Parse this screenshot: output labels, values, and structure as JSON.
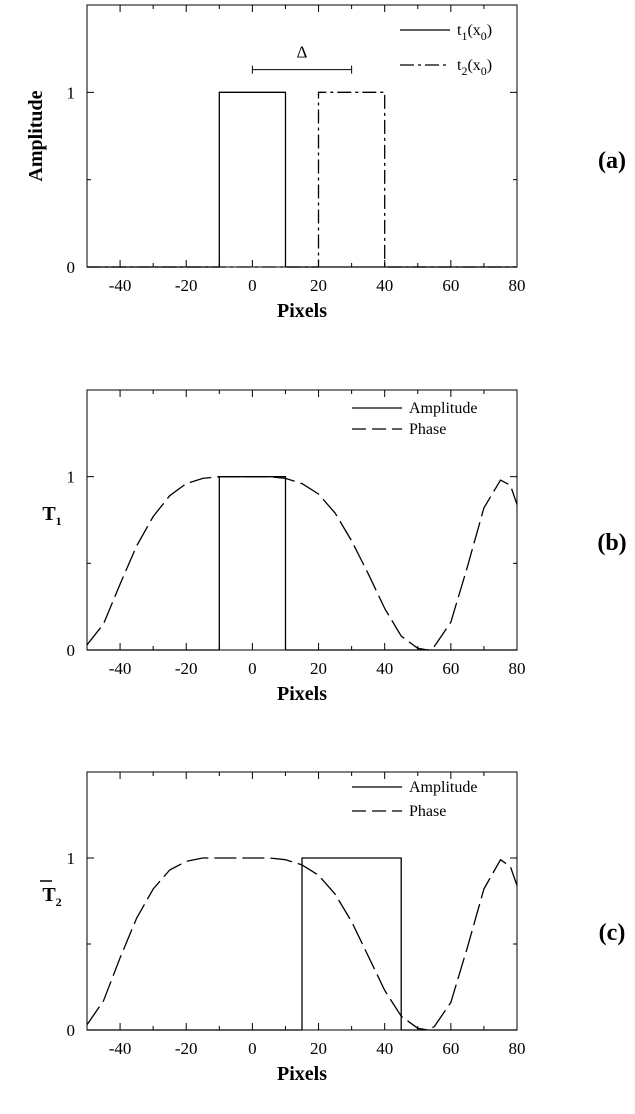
{
  "figure": {
    "background": "#ffffff",
    "ink": "#000000"
  },
  "chart_data": [
    {
      "type": "line",
      "panel_label": "(a)",
      "xlabel": "Pixels",
      "ylabel": "Amplitude",
      "xlim": [
        -50,
        80
      ],
      "ylim": [
        0,
        1.5
      ],
      "xticks": [
        -40,
        -20,
        0,
        20,
        40,
        60,
        80
      ],
      "yticks": [
        0,
        1
      ],
      "annotation": {
        "text": "Δ",
        "from": 0,
        "to": 30,
        "y": 1.13
      },
      "series": [
        {
          "name": "t1(x0)",
          "legend_main": "t",
          "legend_sub": "1",
          "legend_tail": "(x",
          "legend_sub2": "0",
          "legend_end": ")",
          "style": "solid",
          "x": [
            -50,
            -10,
            -10,
            10,
            10,
            80
          ],
          "y": [
            0,
            0,
            1,
            1,
            0,
            0
          ]
        },
        {
          "name": "t2(x0)",
          "legend_main": "t",
          "legend_sub": "2",
          "legend_tail": "(x",
          "legend_sub2": "0",
          "legend_end": ")",
          "style": "dashdot",
          "x": [
            -50,
            20,
            20,
            40,
            40,
            80
          ],
          "y": [
            0,
            0,
            1,
            1,
            0,
            0
          ]
        }
      ]
    },
    {
      "type": "line",
      "panel_label": "(b)",
      "xlabel": "Pixels",
      "ylabel": "T",
      "ylabel_sub": "1",
      "ylabel_bar": false,
      "xlim": [
        -50,
        80
      ],
      "ylim": [
        0,
        1.5
      ],
      "xticks": [
        -40,
        -20,
        0,
        20,
        40,
        60,
        80
      ],
      "yticks": [
        0,
        1
      ],
      "series": [
        {
          "name": "Amplitude",
          "style": "solid",
          "x": [
            -50,
            -10,
            -10,
            10,
            10,
            80
          ],
          "y": [
            0,
            0,
            1,
            1,
            0,
            0
          ]
        },
        {
          "name": "Phase",
          "style": "dashed",
          "x": [
            -50,
            -45,
            -40,
            -35,
            -30,
            -25,
            -20,
            -15,
            -10,
            -5,
            0,
            5,
            10,
            15,
            20,
            25,
            30,
            35,
            40,
            45,
            50,
            53,
            55,
            60,
            65,
            70,
            75,
            78,
            80
          ],
          "y": [
            0.03,
            0.15,
            0.38,
            0.6,
            0.77,
            0.89,
            0.96,
            0.99,
            1.0,
            1.0,
            1.0,
            1.0,
            0.99,
            0.96,
            0.9,
            0.79,
            0.63,
            0.44,
            0.24,
            0.08,
            0.01,
            0.0,
            0.02,
            0.16,
            0.48,
            0.82,
            0.98,
            0.95,
            0.84
          ]
        }
      ]
    },
    {
      "type": "line",
      "panel_label": "(c)",
      "xlabel": "Pixels",
      "ylabel": "T",
      "ylabel_sub": "2",
      "ylabel_bar": true,
      "xlim": [
        -50,
        80
      ],
      "ylim": [
        0,
        1.5
      ],
      "xticks": [
        -40,
        -20,
        0,
        20,
        40,
        60,
        80
      ],
      "yticks": [
        0,
        1
      ],
      "series": [
        {
          "name": "Amplitude",
          "style": "solid",
          "x": [
            -50,
            15,
            15,
            45,
            45,
            80
          ],
          "y": [
            0,
            0,
            1,
            1,
            0,
            0
          ]
        },
        {
          "name": "Phase",
          "style": "dashed",
          "x": [
            -50,
            -45,
            -40,
            -35,
            -30,
            -25,
            -20,
            -15,
            -10,
            -5,
            0,
            5,
            10,
            15,
            20,
            25,
            30,
            35,
            40,
            45,
            50,
            53,
            55,
            60,
            65,
            70,
            75,
            78,
            80
          ],
          "y": [
            0.03,
            0.17,
            0.42,
            0.65,
            0.82,
            0.93,
            0.98,
            1.0,
            1.0,
            1.0,
            1.0,
            1.0,
            0.99,
            0.96,
            0.9,
            0.79,
            0.63,
            0.43,
            0.23,
            0.08,
            0.01,
            0.0,
            0.02,
            0.16,
            0.48,
            0.82,
            0.99,
            0.95,
            0.84
          ]
        }
      ]
    }
  ]
}
